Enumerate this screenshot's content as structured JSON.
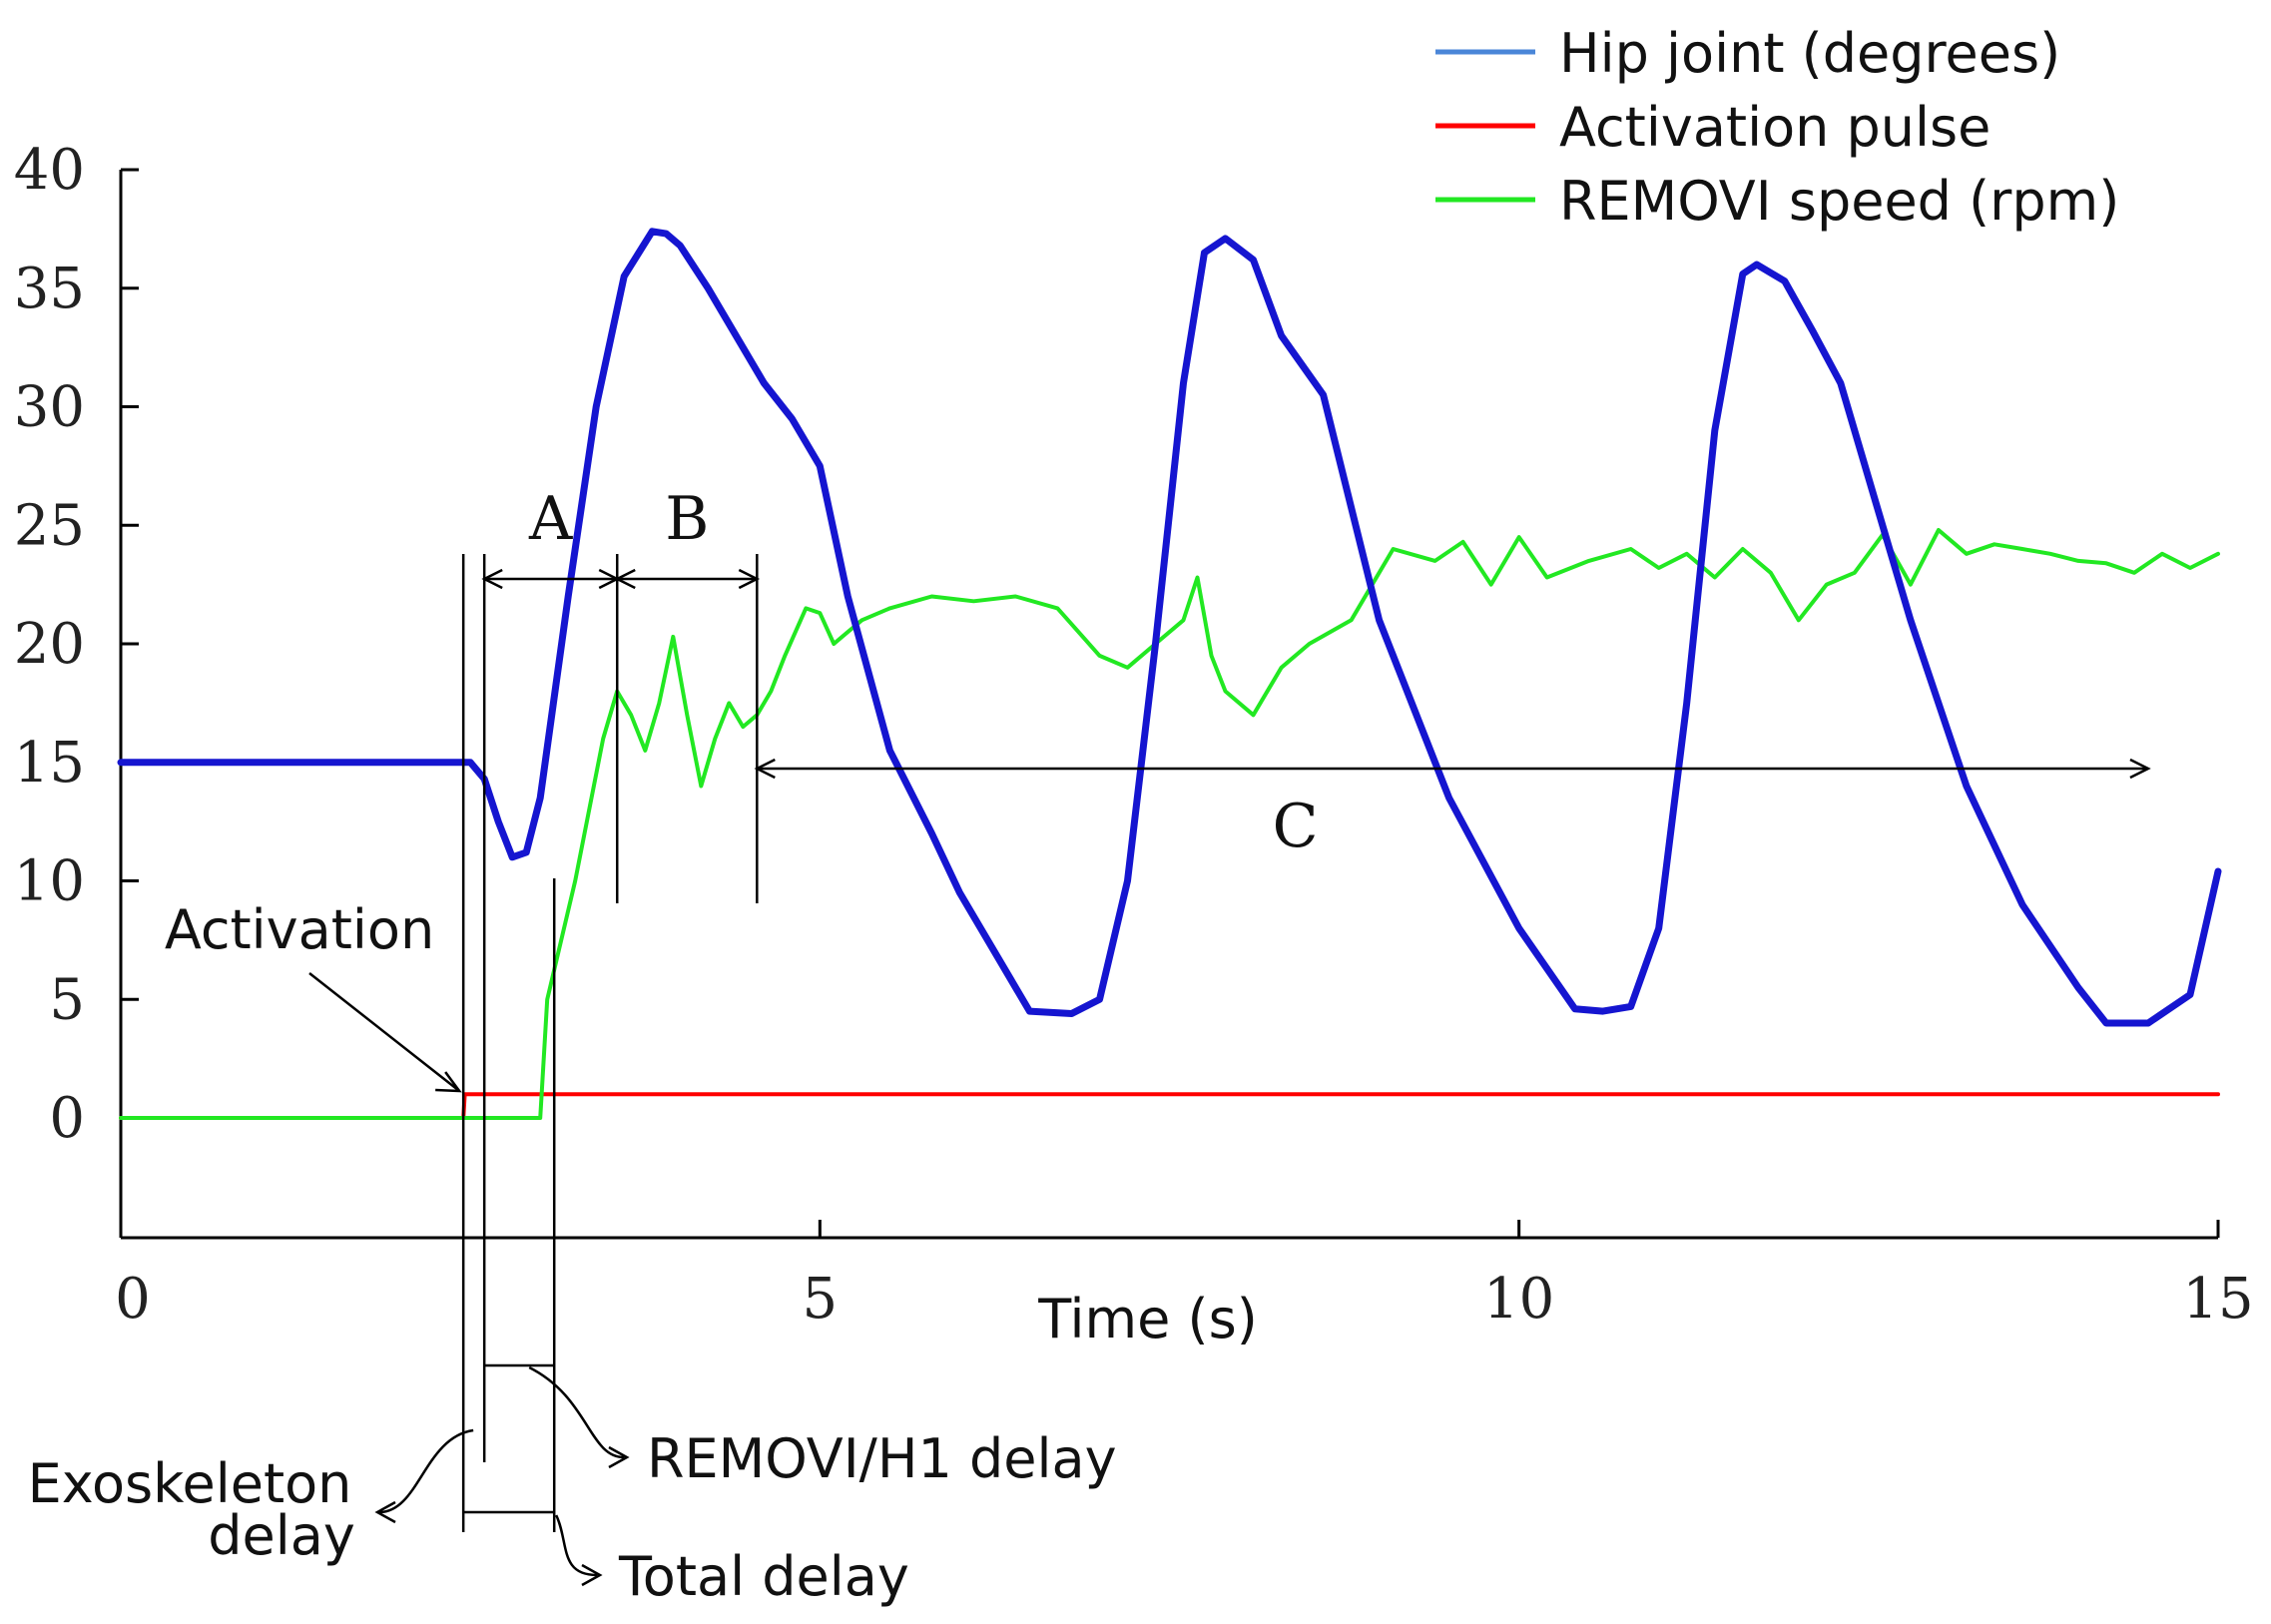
{
  "chart_data": {
    "type": "line",
    "xlabel": "Time (s)",
    "ylabel": "",
    "xlim": [
      0,
      15
    ],
    "ylim": [
      -5,
      40
    ],
    "xticks": [
      0,
      5,
      10,
      15
    ],
    "yticks": [
      0,
      5,
      10,
      15,
      20,
      25,
      30,
      35,
      40
    ],
    "grid": false,
    "legend_position": "top-right",
    "series": [
      {
        "name": "Hip joint (degrees)",
        "color": "#1515d0",
        "legend_color": "#4a86d8",
        "x": [
          0,
          1,
          2,
          2.5,
          2.6,
          2.7,
          2.8,
          2.9,
          3.0,
          3.2,
          3.4,
          3.6,
          3.8,
          3.9,
          4.0,
          4.2,
          4.4,
          4.6,
          4.8,
          5.0,
          5.2,
          5.5,
          5.8,
          6.0,
          6.2,
          6.5,
          6.8,
          7.0,
          7.2,
          7.4,
          7.6,
          7.75,
          7.9,
          8.1,
          8.3,
          8.6,
          9.0,
          9.5,
          10.0,
          10.4,
          10.6,
          10.8,
          11.0,
          11.2,
          11.4,
          11.6,
          11.7,
          11.9,
          12.1,
          12.3,
          12.5,
          12.8,
          13.2,
          13.6,
          14.0,
          14.2,
          14.5,
          14.8,
          15.0
        ],
        "y": [
          15,
          15,
          15,
          15,
          14.3,
          12.5,
          11.0,
          11.2,
          13.5,
          22,
          30,
          35.5,
          37.4,
          37.3,
          36.8,
          35.0,
          33.0,
          31.0,
          29.5,
          27.5,
          22,
          15.5,
          12,
          9.5,
          7.5,
          4.5,
          4.4,
          5,
          10,
          20,
          31,
          36.5,
          37.1,
          36.2,
          33.0,
          30.5,
          21,
          13.5,
          8.0,
          4.6,
          4.5,
          4.7,
          8,
          17.5,
          29,
          35.6,
          36,
          35.3,
          33.2,
          31.0,
          27,
          21,
          14,
          9.0,
          5.5,
          4.0,
          4.0,
          5.2,
          10.4
        ]
      },
      {
        "name": "Activation pulse",
        "color": "#ff0000",
        "x": [
          0,
          2.45,
          2.46,
          15
        ],
        "y": [
          0,
          0,
          1,
          1
        ]
      },
      {
        "name": "REMOVI speed (rpm)",
        "color": "#22e822",
        "x": [
          0,
          1,
          2,
          3.0,
          3.05,
          3.15,
          3.25,
          3.35,
          3.45,
          3.55,
          3.65,
          3.75,
          3.85,
          3.95,
          4.05,
          4.15,
          4.25,
          4.35,
          4.45,
          4.55,
          4.65,
          4.75,
          4.9,
          5.0,
          5.1,
          5.2,
          5.3,
          5.5,
          5.8,
          6.1,
          6.4,
          6.7,
          7.0,
          7.2,
          7.4,
          7.6,
          7.7,
          7.8,
          7.9,
          8.1,
          8.3,
          8.5,
          8.8,
          9.1,
          9.4,
          9.6,
          9.8,
          10.0,
          10.2,
          10.5,
          10.8,
          11.0,
          11.2,
          11.4,
          11.6,
          11.8,
          12.0,
          12.2,
          12.4,
          12.6,
          12.8,
          13.0,
          13.2,
          13.4,
          13.6,
          13.8,
          14.0,
          14.2,
          14.4,
          14.6,
          14.8,
          15.0
        ],
        "y": [
          0,
          0,
          0,
          0,
          5,
          7.5,
          10,
          13,
          16,
          18,
          17,
          15.5,
          17.5,
          20.3,
          17,
          14,
          16,
          17.5,
          16.5,
          17,
          18,
          19.5,
          21.5,
          21.3,
          20.0,
          20.5,
          21.0,
          21.5,
          22.0,
          21.8,
          22.0,
          21.5,
          19.5,
          19.0,
          20.0,
          21.0,
          22.8,
          19.5,
          18.0,
          17.0,
          19.0,
          20.0,
          21.0,
          24.0,
          23.5,
          24.3,
          22.5,
          24.5,
          22.8,
          23.5,
          24.0,
          23.2,
          23.8,
          22.8,
          24.0,
          23.0,
          21.0,
          22.5,
          23.0,
          24.6,
          22.5,
          24.8,
          23.8,
          24.2,
          24.0,
          23.8,
          23.5,
          23.4,
          23.0,
          23.8,
          23.2,
          23.8
        ]
      }
    ],
    "annotations": {
      "activation": "Activation",
      "a": "A",
      "b": "B",
      "c": "C",
      "exoskeleton_delay_line1": "Exoskeleton",
      "exoskeleton_delay_line2": "delay",
      "removi_h1_delay": "REMOVI/H1 delay",
      "total_delay": "Total delay"
    },
    "markers_x": {
      "activation": 2.45,
      "hip_response": 2.6,
      "removi_response": 3.1,
      "a_end": 3.55,
      "b_end": 4.55,
      "c_end": 14.5
    }
  }
}
